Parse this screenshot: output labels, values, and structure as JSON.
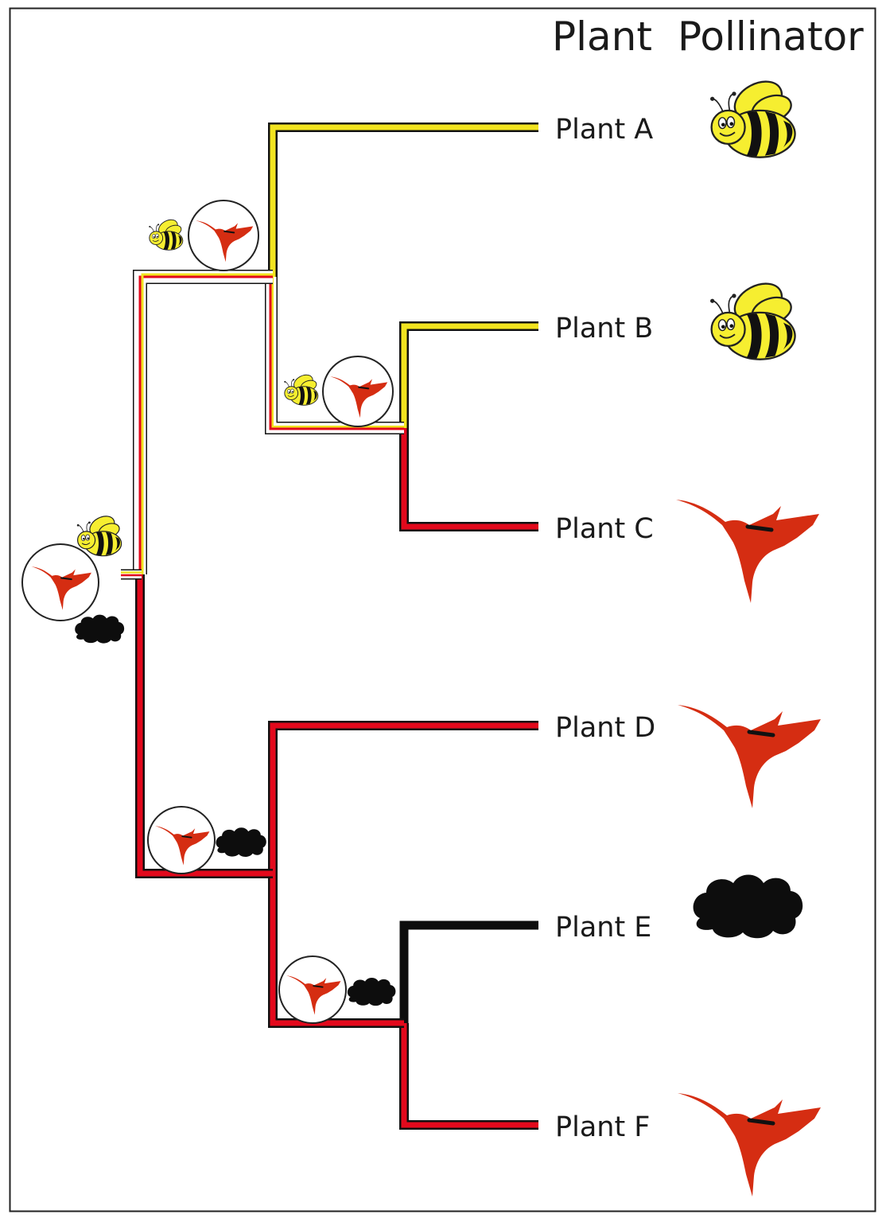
{
  "headers": {
    "plant": "Plant",
    "pollinator": "Pollinator"
  },
  "colors": {
    "bee_yellow": "#f2e41f",
    "hummingbird_red": "#e3091c",
    "black": "#0d0d0d",
    "bird_fill": "#d52d12",
    "frame": "#222222"
  },
  "tips": [
    {
      "label": "Plant A",
      "pollinator": "bee"
    },
    {
      "label": "Plant B",
      "pollinator": "bee"
    },
    {
      "label": "Plant C",
      "pollinator": "hummingbird"
    },
    {
      "label": "Plant D",
      "pollinator": "hummingbird"
    },
    {
      "label": "Plant E",
      "pollinator": "black-blob"
    },
    {
      "label": "Plant F",
      "pollinator": "hummingbird"
    }
  ],
  "ancestral_states": [
    {
      "node": "root",
      "states": [
        "bee",
        "hummingbird",
        "black-blob"
      ]
    },
    {
      "node": "ABC",
      "states": [
        "bee",
        "hummingbird"
      ]
    },
    {
      "node": "BC",
      "states": [
        "bee",
        "hummingbird"
      ]
    },
    {
      "node": "DEF",
      "states": [
        "hummingbird",
        "black-blob"
      ]
    },
    {
      "node": "EF",
      "states": [
        "hummingbird",
        "black-blob"
      ]
    }
  ]
}
